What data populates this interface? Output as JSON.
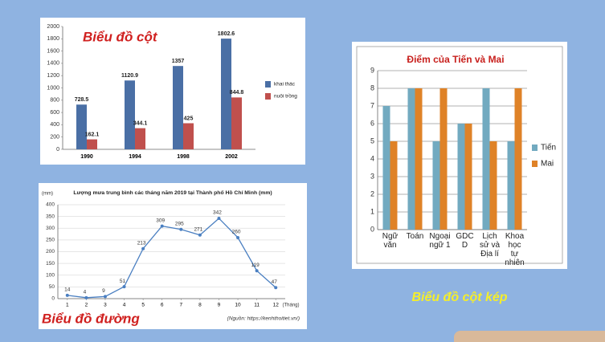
{
  "chart_data": [
    {
      "type": "bar",
      "annotation": "Biểu đồ cột",
      "categories": [
        "1990",
        "1994",
        "1998",
        "2002"
      ],
      "series": [
        {
          "name": "khai thác",
          "color": "#4a6fa5",
          "values": [
            728.5,
            1120.9,
            1357,
            1802.6
          ]
        },
        {
          "name": "nuôi trồng",
          "color": "#c0504d",
          "values": [
            162.1,
            344.1,
            425,
            844.8
          ]
        }
      ],
      "ylim": [
        0,
        2000
      ],
      "yticks": [
        0,
        200,
        400,
        600,
        800,
        1000,
        1200,
        1400,
        1600,
        1800,
        2000
      ],
      "grid": false,
      "legend": "right"
    },
    {
      "type": "line",
      "title": "Lượng mưa trung bình các tháng năm 2019 tại Thành phố Hồ Chí Minh (mm)",
      "y_label": "(mm)",
      "x_label": "(Tháng)",
      "source": "(Nguồn: https://kenhthoitiet.vn/)",
      "annotation": "Biểu đồ đường",
      "x": [
        1,
        2,
        3,
        4,
        5,
        6,
        7,
        8,
        9,
        10,
        11,
        12
      ],
      "values": [
        14,
        4,
        9,
        51,
        213,
        309,
        295,
        271,
        342,
        260,
        119,
        47
      ],
      "color": "#4a7fc1",
      "xlim": [
        0.5,
        12.5
      ],
      "xticks": [
        1,
        2,
        3,
        4,
        5,
        6,
        7,
        8,
        9,
        10,
        11,
        12
      ],
      "ylim": [
        0,
        400
      ],
      "yticks": [
        0,
        50,
        100,
        150,
        200,
        250,
        300,
        350,
        400
      ],
      "grid": true
    },
    {
      "type": "bar",
      "title": "Điểm của Tiến và Mai",
      "annotation": "Biểu đồ cột kép",
      "categories": [
        "Ngữ văn",
        "Toán",
        "Ngoại ngữ 1",
        "GDCD",
        "Lịch sử và Địa lí",
        "Khoa học tự nhiên"
      ],
      "series": [
        {
          "name": "Tiến",
          "color": "#72aac0",
          "values": [
            7,
            8,
            5,
            6,
            8,
            5
          ]
        },
        {
          "name": "Mai",
          "color": "#df8227",
          "values": [
            5,
            8,
            8,
            6,
            5,
            8
          ]
        }
      ],
      "ylim": [
        0,
        9
      ],
      "yticks": [
        0,
        1,
        2,
        3,
        4,
        5,
        6,
        7,
        8,
        9
      ],
      "grid": true,
      "legend": "right"
    }
  ]
}
